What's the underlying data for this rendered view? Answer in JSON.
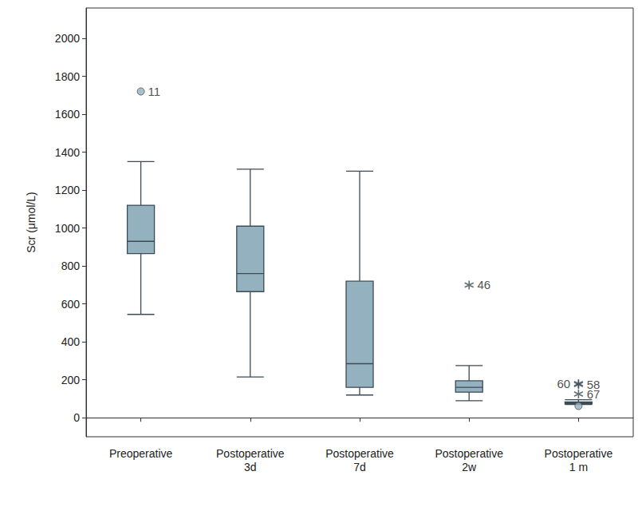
{
  "chart_data": {
    "type": "boxplot",
    "y_label": "Scr (μmol/L)",
    "categories": [
      "Preoperative",
      "Postoperative\n3d",
      "Postoperative\n7d",
      "Postoperative\n2w",
      "Postoperative\n1 m"
    ],
    "boxes": [
      [
        545,
        865,
        930,
        1120,
        1350
      ],
      [
        215,
        665,
        760,
        1010,
        1310
      ],
      [
        120,
        160,
        285,
        720,
        1300
      ],
      [
        90,
        135,
        160,
        195,
        275
      ],
      [
        70,
        73,
        78,
        83,
        95
      ]
    ],
    "outliers": [
      {
        "category": 0,
        "value": 1720,
        "label": "11",
        "marker": "circle"
      },
      {
        "category": 3,
        "value": 700,
        "label": "46",
        "marker": "star"
      },
      {
        "category": 4,
        "value": 175,
        "label": "58",
        "marker": "star"
      },
      {
        "category": 4,
        "value": 180,
        "label": "60",
        "marker": "star"
      },
      {
        "category": 4,
        "value": 125,
        "label": "67",
        "marker": "star"
      },
      {
        "category": 4,
        "value": 62,
        "marker": "circle"
      }
    ],
    "color": "#93b1bf",
    "ylim": [
      -100,
      2160
    ],
    "yticks": [
      0,
      200,
      400,
      600,
      800,
      1000,
      1200,
      1400,
      1600,
      1800,
      2000
    ],
    "grid": false
  }
}
